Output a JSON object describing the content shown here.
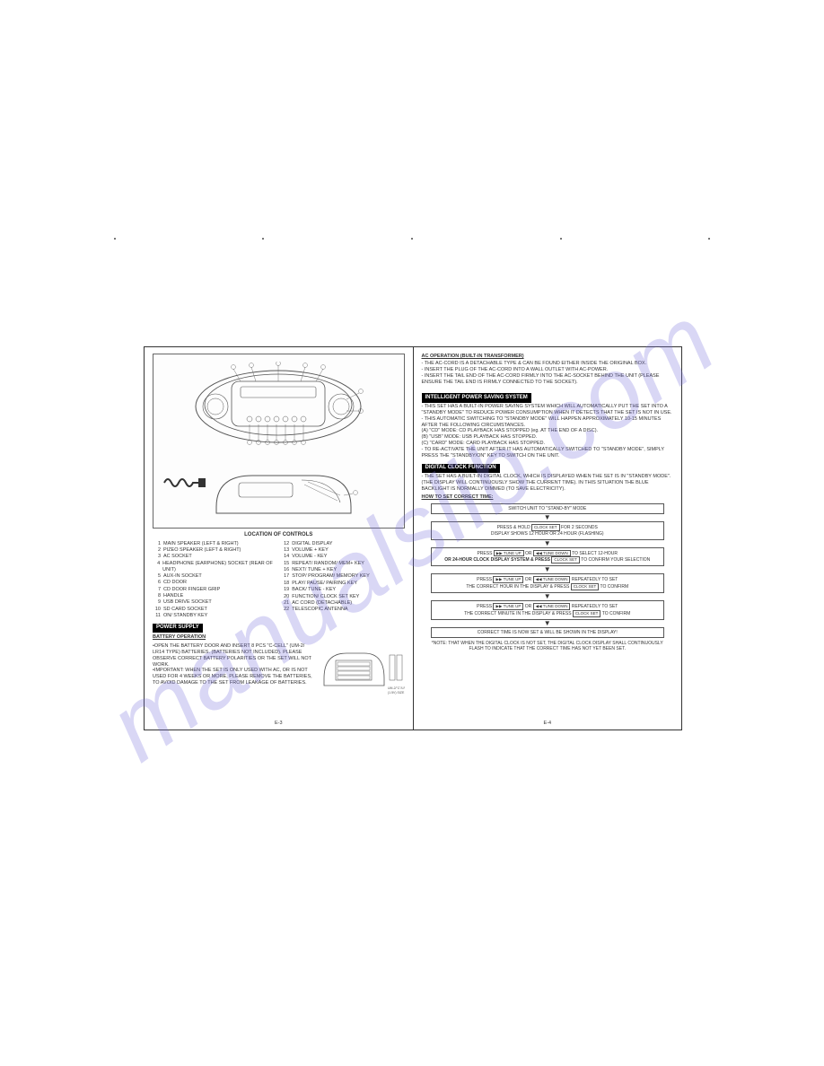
{
  "watermark": "manualslib.com",
  "left": {
    "location_title": "LOCATION OF CONTROLS",
    "controls_left": [
      {
        "n": "1",
        "t": "MAIN SPEAKER (LEFT & RIGHT)"
      },
      {
        "n": "2",
        "t": "PIZEO SPEAKER (LEFT & RIGHT)"
      },
      {
        "n": "3",
        "t": "AC SOCKET"
      },
      {
        "n": "4",
        "t": "HEADPHONE (EARPHONE) SOCKET (REAR OF UNIT)"
      },
      {
        "n": "5",
        "t": "AUX-IN SOCKET"
      },
      {
        "n": "6",
        "t": "CD DOOR"
      },
      {
        "n": "7",
        "t": "CD DOOR FINGER GRIP"
      },
      {
        "n": "8",
        "t": "HANDLE"
      },
      {
        "n": "9",
        "t": "USB DRIVE SOCKET"
      },
      {
        "n": "10",
        "t": "SD CARD SOCKET"
      },
      {
        "n": "11",
        "t": "ON/ STANDBY KEY"
      }
    ],
    "controls_right": [
      {
        "n": "12",
        "t": "DIGITAL DISPLAY"
      },
      {
        "n": "13",
        "t": "VOLUME + KEY"
      },
      {
        "n": "14",
        "t": "VOLUME - KEY"
      },
      {
        "n": "15",
        "t": "REPEAT/ RANDOM/ MEM+ KEY"
      },
      {
        "n": "16",
        "t": "NEXT/ TUNE + KEY"
      },
      {
        "n": "17",
        "t": "STOP/ PROGRAM/ MEMORY KEY"
      },
      {
        "n": "18",
        "t": "PLAY/ PAUSE/ PAIRING KEY"
      },
      {
        "n": "19",
        "t": "BACK/ TUNE - KEY"
      },
      {
        "n": "20",
        "t": "FUNCTION/ CLOCK SET KEY"
      },
      {
        "n": "21",
        "t": "AC CORD (DETACHABLE)"
      },
      {
        "n": "22",
        "t": "TELESCOPIC ANTENNA"
      }
    ],
    "power_hdr": "POWER SUPPLY",
    "batt_hdr": "BATTERY OPERATION",
    "batt_txt": "•OPEN THE BATTERY DOOR AND INSERT 8 PCS \"C-CELL\" (UM-2/ LR14 TYPE) BATTERIES. (BATTERIES NOT INCLUDED). PLEASE OBSERVE CORRECT BATTERY POLARITIES OR THE SET WILL NOT WORK.\n•IMPORTANT: WHEN THE SET IS ONLY USED WITH AC, OR IS NOT USED FOR 4 WEEKS OR MORE, PLEASE REMOVE THE BATTERIES, TO AVOID DAMAGE TO THE SET FROM LEAKAGE OF BATTERIES.",
    "batt_label": "UM-2/\"C\"/LR14\n(1.5V) SIZE x 8 PCS",
    "page": "E-3"
  },
  "right": {
    "ac_hdr": "AC OPERATION (BUILT-IN TRANSFORMER)",
    "ac_txt": "- THE AC-CORD IS A DETACHABLE TYPE & CAN BE FOUND EITHER INSIDE THE ORIGINAL BOX.\n- INSERT THE PLUG OF THE AC-CORD INTO A WALL OUTLET WITH AC-POWER.\n- INSERT THE TAIL END OF THE AC-CORD FIRMLY INTO THE AC-SOCKET BEHIND THE UNIT (PLEASE ENSURE THE TAIL END IS FIRMLY CONNECTED TO THE SOCKET).",
    "ips_hdr": "INTELLIGENT POWER SAVING SYSTEM",
    "ips_txt": "- THIS SET HAS A BUILT-IN POWER SAVING SYSTEM WHICH WILL AUTOMATICALLY PUT THE SET INTO A \"STANDBY MODE\" TO REDUCE POWER CONSUMPTION WHEN IT DETECTS THAT THE SET IS NOT IN USE.\n- THIS AUTOMATIC SWITCHING TO \"STANDBY MODE\" WILL HAPPEN APPROXIMATELY 10-15 MINUTES AFTER THE FOLLOWING CIRCUMSTANCES.\n(A) \"CD\" MODE: CD PLAYBACK HAS STOPPED (eg. AT THE END OF A DISC).\n(B) \"USB\" MODE: USB PLAYBACK HAS STOPPED.\n(C) \"CARD\" MODE: CARD PLAYBACK HAS STOPPED.\n- TO RE-ACTIVATE THE UNIT AFTER IT HAS AUTOMATICALLY SWITCHED TO \"STANDBY MODE\", SIMPLY PRESS THE \"STANDBY/ON\" KEY TO SWITCH ON THE UNIT.",
    "clk_hdr": "DIGITAL CLOCK FUNCTION",
    "clk_txt": "- THE SET HAS A BUILT-IN DIGITAL CLOCK, WHICH IS DISPLAYED WHEN THE SET IS IN \"STANDBY MODE\". (THE DISPLAY WILL CONTINUOUSLY SHOW THE CURRENT TIME). IN THIS SITUATION THE BLUE BACKLIGHT IS NORMALLY DIMMED (TO SAVE ELECTRICITY).",
    "how_hdr": "HOW TO SET CORRECT TIME:",
    "flow": {
      "b1": "SWITCH UNIT TO \"STAND-BY\" MODE",
      "b2_a": "PRESS & HOLD",
      "b2_btn": "CLOCK SET",
      "b2_b": "FOR 2 SECONDS",
      "b2_c": "DISPLAY SHOWS 12 HOUR OR 24 HOUR (FLASHING)",
      "b3_a": "PRESS",
      "b3_tu": "▶▶ TUNE UP",
      "b3_or": "OR",
      "b3_td": "◀◀ TUNE DOWN",
      "b3_b": "TO SELECT 12-HOUR",
      "b3_c": "OR 24-HOUR CLOCK DISPLAY SYSTEM & PRESS",
      "b3_cs": "CLOCK SET",
      "b3_d": "TO CONFIRM YOUR SELECTION",
      "b4_a": "PRESS",
      "b4_b": "REPEATEDLY TO SET",
      "b4_c": "THE CORRECT HOUR IN THE DISPLAY & PRESS",
      "b4_d": "TO CONFIRM",
      "b5_a": "PRESS",
      "b5_b": "REPEATEDLY TO SET",
      "b5_c": "THE CORRECT MINUTE IN THE DISPLAY & PRESS",
      "b5_d": "TO CONFIRM",
      "b6": "CORRECT TIME IS NOW SET & WILL BE SHOWN IN THE DISPLAY!"
    },
    "note": "*NOTE: THAT WHEN THE DIGITAL CLOCK IS NOT SET, THE DIGITAL CLOCK DISPLAY SHALL CONTINUOUSLY FLASH TO INDICATE THAT THE CORRECT TIME HAS NOT YET BEEN SET.",
    "page": "E-4"
  }
}
